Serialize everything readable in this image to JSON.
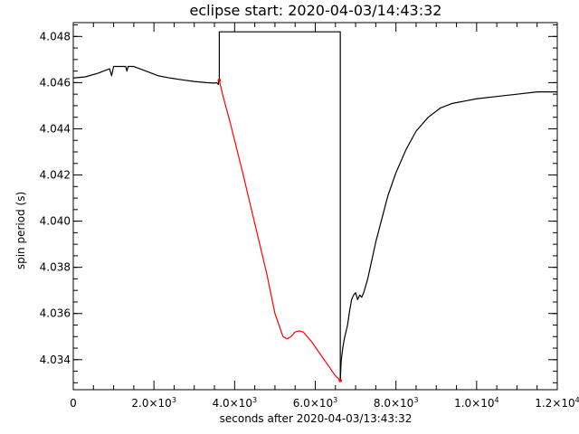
{
  "chart_data": {
    "type": "line",
    "title": "eclipse start: 2020-04-03/14:43:32",
    "xlabel": "seconds after 2020-04-03/13:43:32",
    "ylabel": "spin period (s)",
    "xlim": [
      0,
      12000
    ],
    "ylim": [
      4.0327,
      4.0486
    ],
    "x_ticks": [
      {
        "value": 0,
        "base": "0",
        "exp": ""
      },
      {
        "value": 2000,
        "base": "2.0×10",
        "exp": "3"
      },
      {
        "value": 4000,
        "base": "4.0×10",
        "exp": "3"
      },
      {
        "value": 6000,
        "base": "6.0×10",
        "exp": "3"
      },
      {
        "value": 8000,
        "base": "8.0×10",
        "exp": "3"
      },
      {
        "value": 10000,
        "base": "1.0×10",
        "exp": "4"
      },
      {
        "value": 12000,
        "base": "1.2×10",
        "exp": "4"
      }
    ],
    "y_ticks": [
      {
        "value": 4.034,
        "label": "4.034"
      },
      {
        "value": 4.036,
        "label": "4.036"
      },
      {
        "value": 4.038,
        "label": "4.038"
      },
      {
        "value": 4.04,
        "label": "4.040"
      },
      {
        "value": 4.042,
        "label": "4.042"
      },
      {
        "value": 4.044,
        "label": "4.044"
      },
      {
        "value": 4.046,
        "label": "4.046"
      },
      {
        "value": 4.048,
        "label": "4.048"
      }
    ],
    "grid": false,
    "series": [
      {
        "color": "#000000",
        "x": [
          0,
          300,
          600,
          900,
          950,
          1000,
          1300,
          1330,
          1360,
          1500,
          1800,
          2100,
          2400,
          2700,
          3000,
          3300,
          3500,
          3550,
          3600,
          3600,
          3620,
          3620,
          6620,
          6620
        ],
        "y": [
          4.0462,
          4.04625,
          4.0464,
          4.0466,
          4.0463,
          4.0467,
          4.0467,
          4.0465,
          4.0467,
          4.0467,
          4.0465,
          4.0463,
          4.0462,
          4.04612,
          4.04605,
          4.046,
          4.04598,
          4.046,
          4.04592,
          4.04608,
          4.04608,
          4.0482,
          4.0482,
          4.0331
        ]
      },
      {
        "color": "#ff0000",
        "x": [
          3620,
          3700,
          3900,
          4200,
          4500,
          4800,
          5000,
          5200,
          5300,
          5400,
          5500,
          5600,
          5700,
          5900,
          6100,
          6300,
          6500,
          6620
        ],
        "y": [
          4.0461,
          4.0455,
          4.0442,
          4.0421,
          4.0399,
          4.0377,
          4.036,
          4.035,
          4.0349,
          4.035,
          4.0352,
          4.03525,
          4.0352,
          4.0348,
          4.0343,
          4.0338,
          4.0333,
          4.0331
        ]
      },
      {
        "color": "#000000",
        "x": [
          6620,
          6640,
          6680,
          6720,
          6760,
          6800,
          6850,
          6900,
          6950,
          7000,
          7050,
          7100,
          7150,
          7200,
          7300,
          7400,
          7500,
          7650,
          7800,
          8000,
          8250,
          8500,
          8800,
          9100,
          9400,
          9700,
          10000,
          10500,
          11000,
          11500,
          12000
        ],
        "y": [
          4.0331,
          4.0339,
          4.0345,
          4.0349,
          4.0352,
          4.0355,
          4.0361,
          4.0366,
          4.0368,
          4.0369,
          4.0366,
          4.0368,
          4.0367,
          4.0369,
          4.0375,
          4.0383,
          4.0391,
          4.0401,
          4.0411,
          4.0421,
          4.0431,
          4.0439,
          4.0445,
          4.0449,
          4.0451,
          4.0452,
          4.0453,
          4.0454,
          4.0455,
          4.0456,
          4.0456
        ]
      }
    ],
    "markers": [
      {
        "x": 3620,
        "y": 4.0461,
        "color": "#ff0000"
      },
      {
        "x": 6620,
        "y": 4.0331,
        "color": "#ff0000"
      }
    ]
  }
}
